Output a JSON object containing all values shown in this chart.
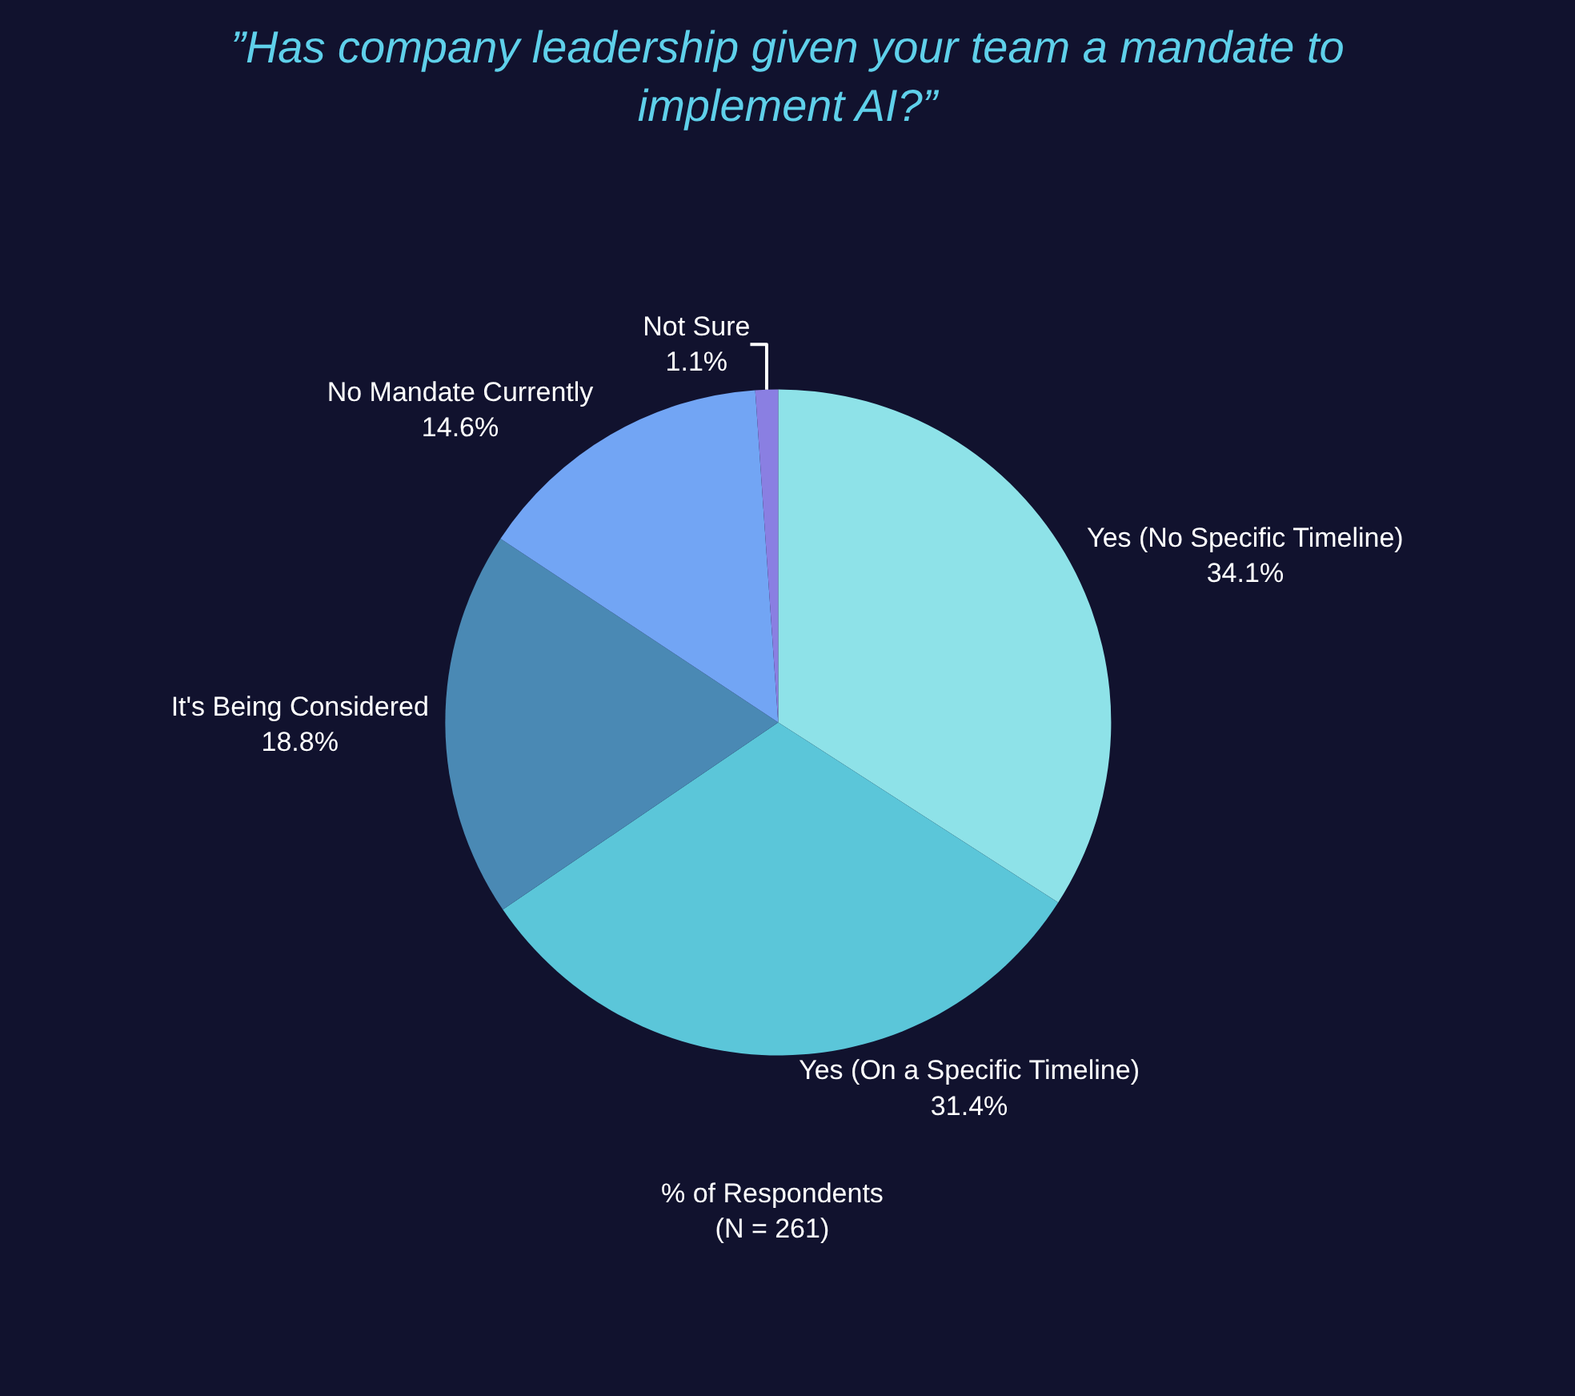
{
  "chart_data": {
    "type": "pie",
    "title": "”Has company leadership given your team a mandate to\nimplement AI?”",
    "categories": [
      "Yes (No Specific Timeline)",
      "Yes (On a Specific Timeline)",
      "It's Being Considered",
      "No Mandate Currently",
      "Not Sure"
    ],
    "values": [
      34.1,
      31.4,
      18.8,
      14.6,
      1.1
    ],
    "value_labels": [
      "34.1%",
      "31.4%",
      "18.8%",
      "14.6%",
      "1.1%"
    ],
    "colors": [
      "#8ee2e8",
      "#5bc6d9",
      "#4a89b4",
      "#72a5f4",
      "#8a7fe2"
    ],
    "annotations": [
      "% of Respondents\n(N = 261)"
    ],
    "legend": false
  }
}
